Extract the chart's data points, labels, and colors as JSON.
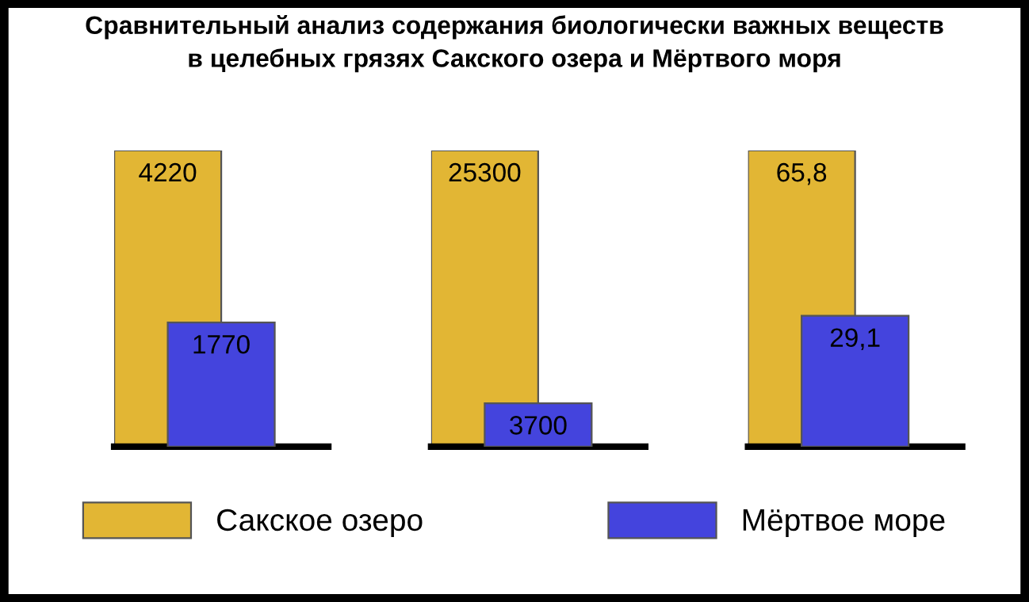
{
  "chart_data": [
    {
      "type": "bar",
      "title": "Сравнительный анализ содержания биологически важных веществ\nв целебных грязях Сакского озера и Мёртвого моря",
      "categories": [
        null
      ],
      "legend": "bottom",
      "series": [
        {
          "name": "Сакское озеро",
          "color": "#e2b634",
          "values": [
            4220
          ],
          "value_labels": [
            "4220"
          ]
        },
        {
          "name": "Мёртвое море",
          "color": "#4444dd",
          "values": [
            1770
          ],
          "value_labels": [
            "1770"
          ]
        }
      ]
    },
    {
      "type": "bar",
      "categories": [
        null
      ],
      "series": [
        {
          "color": "#e2b634",
          "values": [
            25300
          ],
          "value_labels": [
            "25300"
          ]
        },
        {
          "color": "#4444dd",
          "values": [
            3700
          ],
          "value_labels": [
            "3700"
          ]
        }
      ]
    },
    {
      "type": "bar",
      "categories": [
        null
      ],
      "series": [
        {
          "color": "#e2b634",
          "values": [
            65.8
          ],
          "value_labels": [
            "65,8"
          ]
        },
        {
          "color": "#4444dd",
          "values": [
            29.1
          ],
          "value_labels": [
            "29,1"
          ]
        }
      ]
    }
  ]
}
